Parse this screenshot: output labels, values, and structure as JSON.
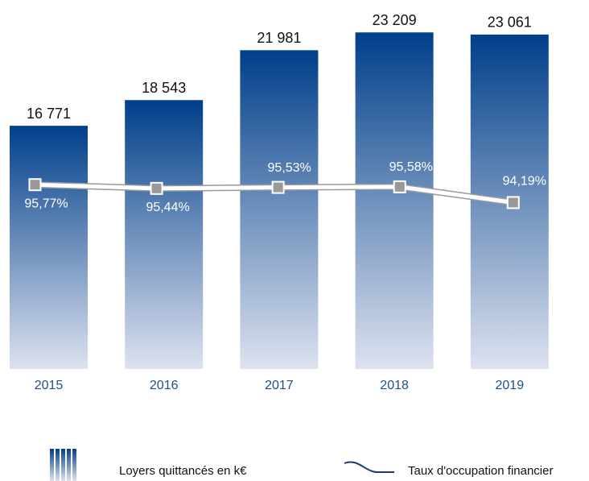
{
  "chart_data": {
    "type": "bar",
    "categories": [
      "2015",
      "2016",
      "2017",
      "2018",
      "2019"
    ],
    "series": [
      {
        "name": "Loyers quittancés en k€",
        "type": "bar",
        "color": "#003f8a",
        "values": [
          16771,
          18543,
          21981,
          23209,
          23061
        ],
        "value_labels": [
          "16 771",
          "18 543",
          "21 981",
          "23 209",
          "23 061"
        ]
      },
      {
        "name": "Taux d'occupation financier",
        "type": "line",
        "axis": "y2",
        "color": "#999999",
        "values": [
          95.77,
          95.44,
          95.53,
          95.58,
          94.19
        ],
        "value_labels": [
          "95,77%",
          "95,44%",
          "95,53%",
          "95,58%",
          "94,19%"
        ]
      }
    ],
    "ylim": [
      0,
      25000
    ],
    "y2lim": [
      79.5,
      111.5
    ],
    "legend": "bottom"
  }
}
